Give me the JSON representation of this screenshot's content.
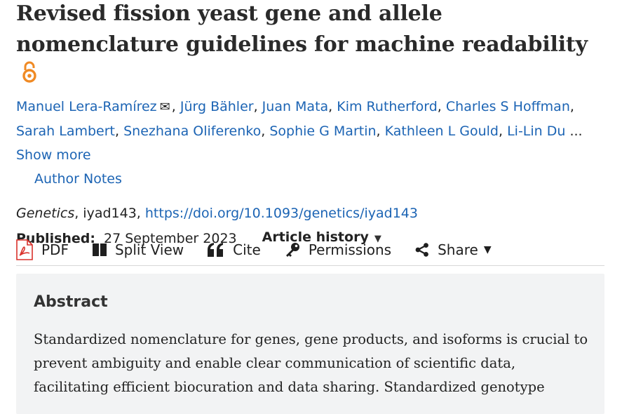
{
  "article": {
    "title": "Revised fission yeast gene and allele nomenclature guidelines for machine readability",
    "authors": [
      "Manuel Lera-Ramírez",
      "Jürg Bähler",
      "Juan Mata",
      "Kim Rutherford",
      "Charles S Hoffman",
      "Sarah Lambert",
      "Snezhana Oliferenko",
      "Sophie G Martin",
      "Kathleen L Gould",
      "Li-Lin Du"
    ],
    "ellipsis": "...",
    "show_more": "Show more",
    "author_notes": "Author Notes",
    "journal": "Genetics",
    "article_id": ", iyad143, ",
    "doi": "https://doi.org/10.1093/genetics/iyad143",
    "published_label": "Published:",
    "published_date": "27 September 2023",
    "article_history": "Article history"
  },
  "toolbar": {
    "pdf": "PDF",
    "split_view": "Split View",
    "cite": "Cite",
    "permissions": "Permissions",
    "share": "Share"
  },
  "abstract": {
    "heading": "Abstract",
    "text": "Standardized nomenclature for genes, gene products, and isoforms is crucial to prevent ambiguity and enable clear communication of scientific data, facilitating efficient biocuration and data sharing. Standardized genotype"
  },
  "colors": {
    "link": "#1c64b4",
    "open_access": "#f08a24",
    "pdf_red": "#d9312b",
    "abstract_bg": "#f2f3f4"
  }
}
